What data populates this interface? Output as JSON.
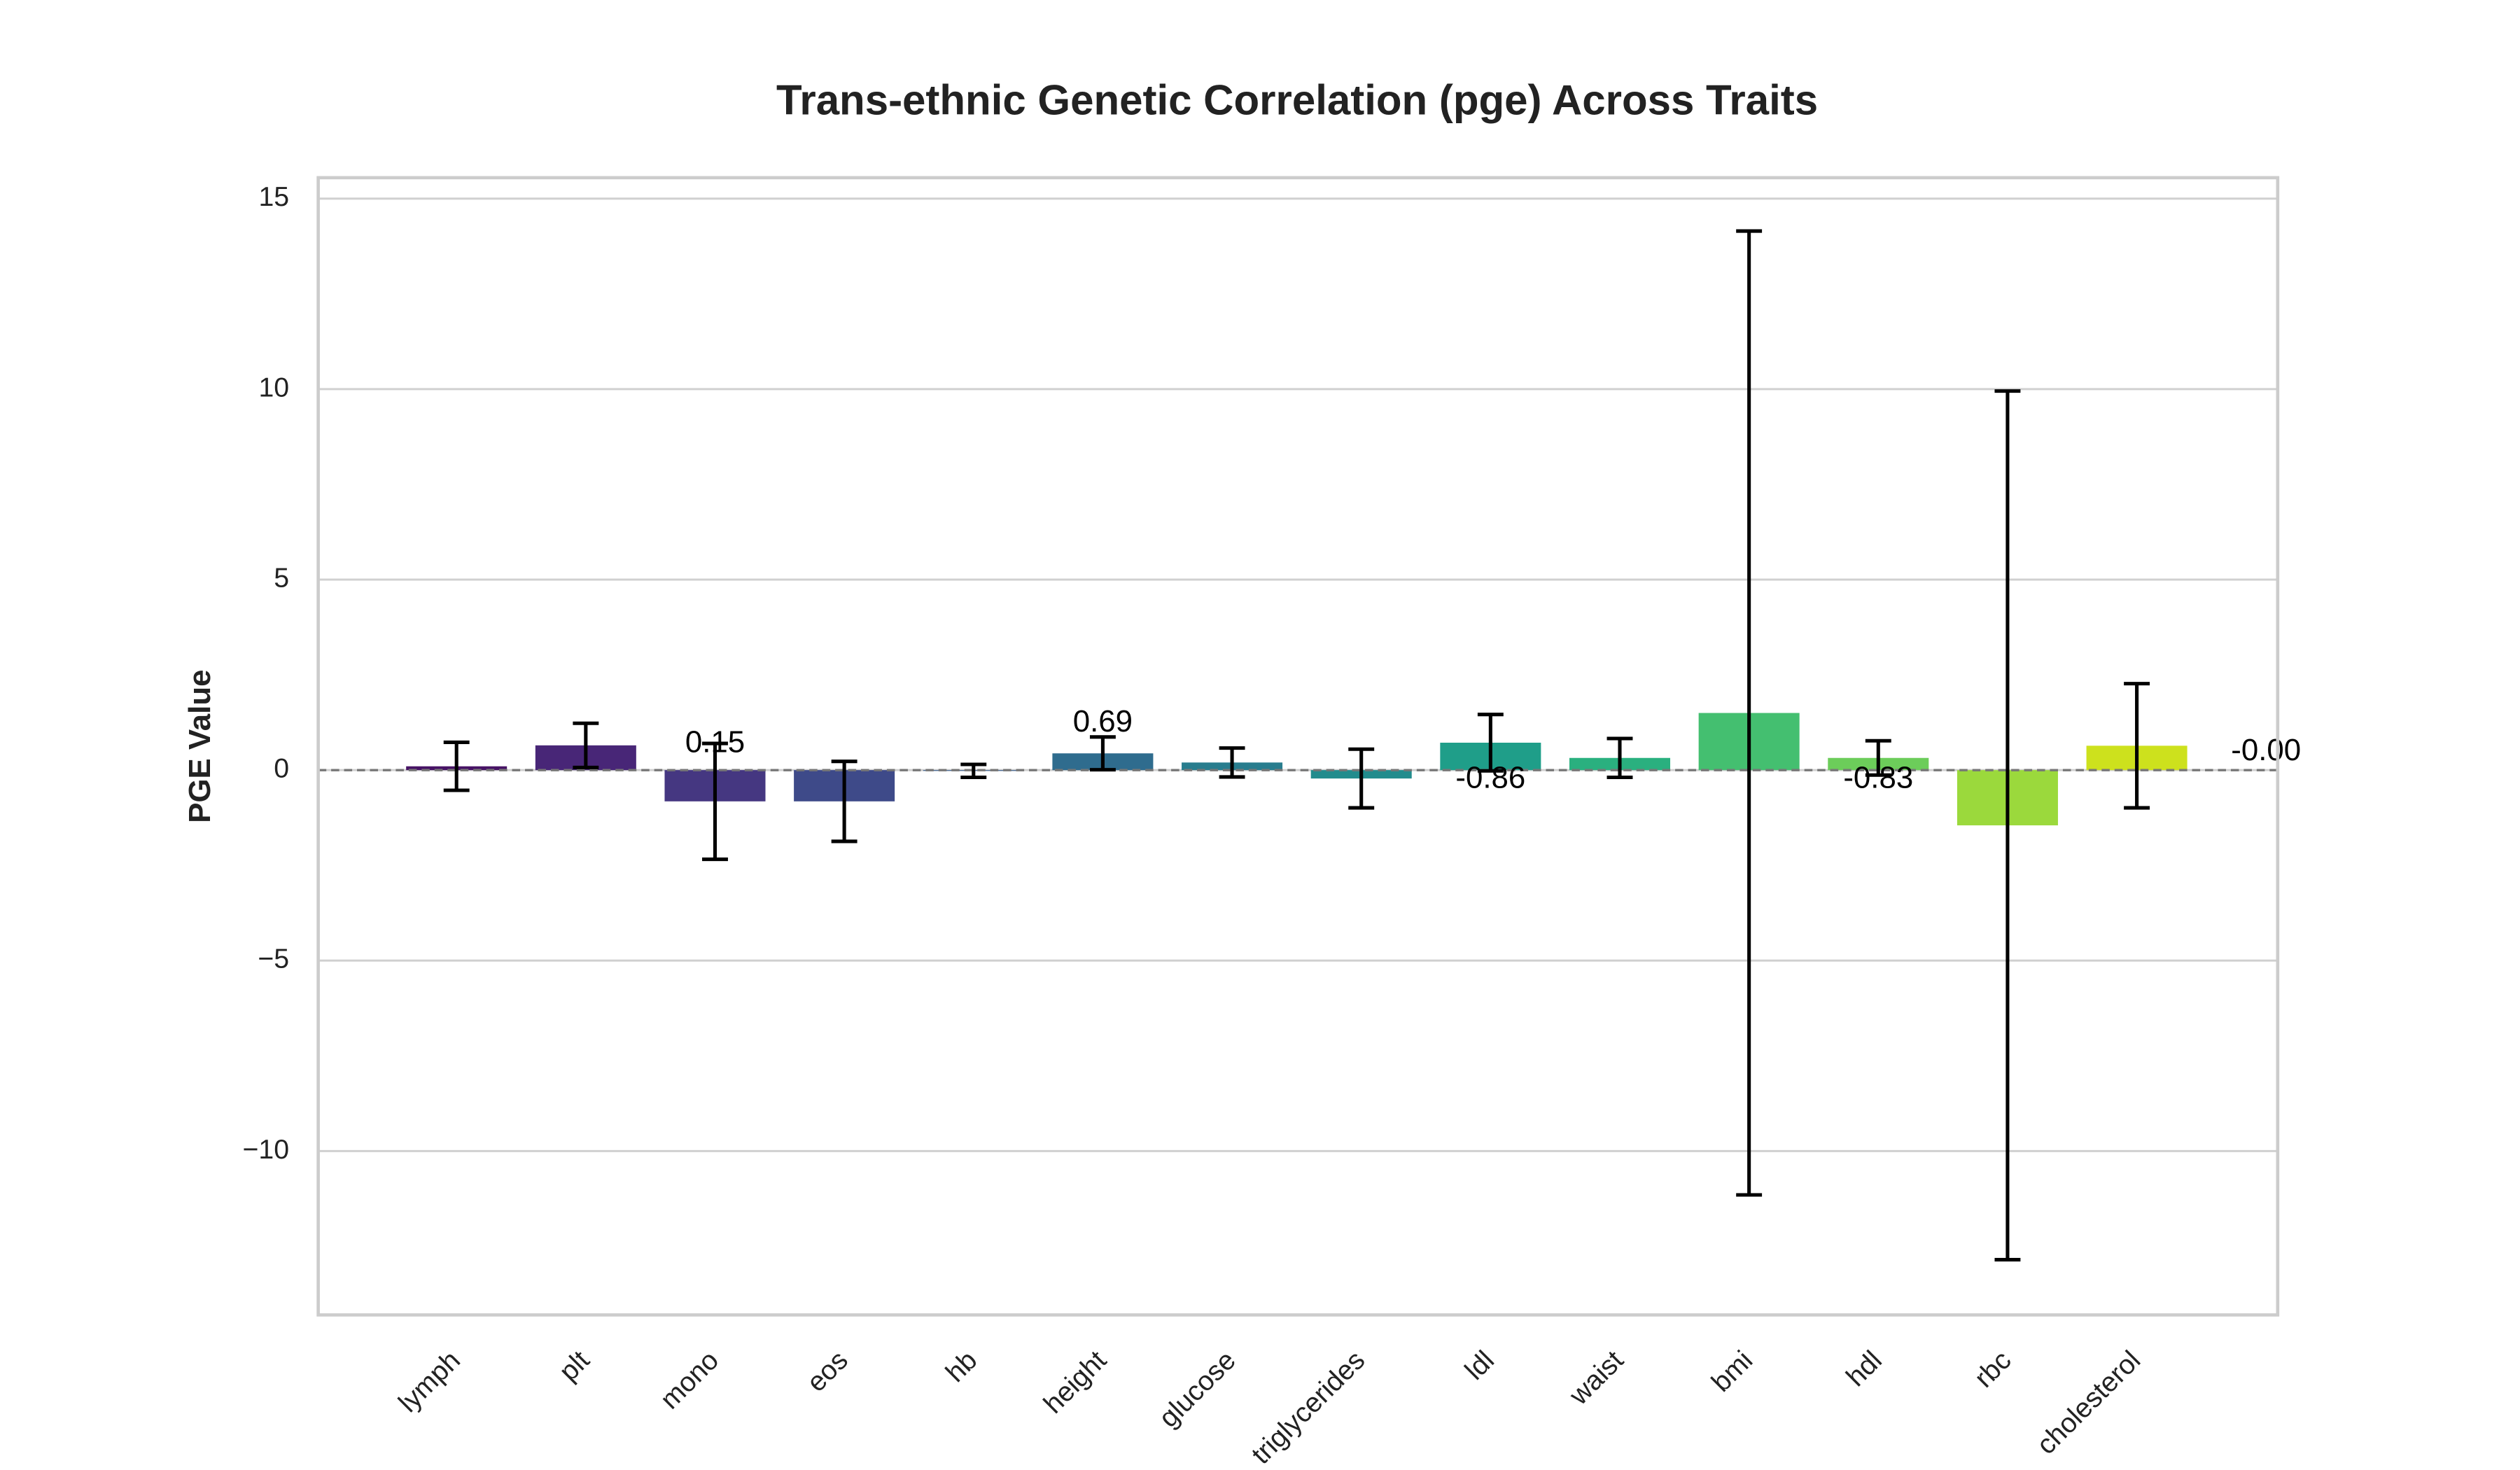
{
  "chart_data": {
    "type": "bar",
    "title": "Trans-ethnic Genetic Correlation (pge) Across Traits",
    "y_label": "PGE Value",
    "categories": [
      "lymph",
      "plt",
      "mono",
      "eos",
      "hb",
      "height",
      "glucose",
      "triglycerides",
      "ldl",
      "waist",
      "bmi",
      "hdl",
      "rbc",
      "cholesterol"
    ],
    "values": [
      0.1,
      0.65,
      -0.82,
      -0.82,
      -0.02,
      0.44,
      0.2,
      -0.22,
      0.72,
      0.32,
      1.5,
      0.32,
      -1.45,
      0.64
    ],
    "errors": [
      0.63,
      0.58,
      1.52,
      1.05,
      0.17,
      0.43,
      0.38,
      0.77,
      0.74,
      0.51,
      12.65,
      0.45,
      11.4,
      1.63
    ],
    "colors": [
      "#471365",
      "#482677",
      "#453781",
      "#3e4a89",
      "#365c8d",
      "#2f6c8e",
      "#287d8e",
      "#228c8d",
      "#1f9e89",
      "#2ab07f",
      "#44bf70",
      "#6ccd5a",
      "#9bd93c",
      "#cde11d"
    ],
    "annotations": [
      {
        "x": 2,
        "y": 0.68,
        "text": "0.15"
      },
      {
        "x": 5,
        "y": 1.23,
        "text": "0.69"
      },
      {
        "x": 8,
        "y": -0.25,
        "text": "-0.86"
      },
      {
        "x": 11,
        "y": -0.25,
        "text": "-0.83"
      },
      {
        "x": 14,
        "y": 0.47,
        "text": "-0.00"
      }
    ],
    "xlim": [
      -1.07,
      14.09
    ],
    "ylim": [
      -14.3,
      15.55
    ],
    "yticks": [
      {
        "value": -10,
        "label": "−10"
      },
      {
        "value": -5,
        "label": "−5"
      },
      0,
      5,
      10,
      15
    ],
    "grid": true,
    "reference_line": 0
  }
}
